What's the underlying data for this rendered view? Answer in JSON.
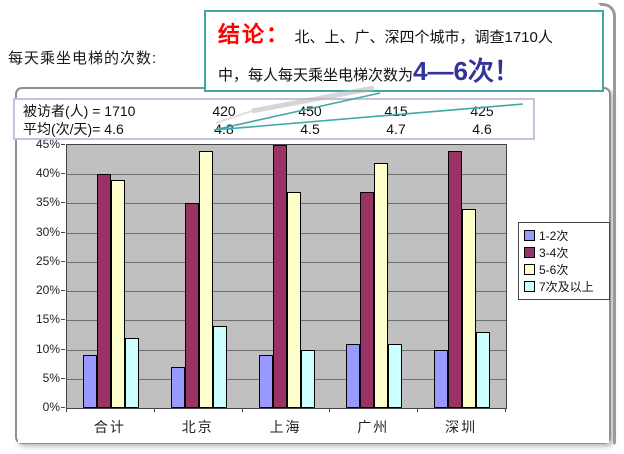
{
  "slide": {
    "title": "每天乘坐电梯的次数:",
    "callout": {
      "heading": "结论：",
      "line1": "北、上、广、深四个城市，调查1710人",
      "line2_prefix": "中，每人每天乘坐电梯次数为",
      "line2_highlight": "4—6次！",
      "border_color": "#3fa8a8",
      "heading_color": "#ff0000",
      "highlight_color": "#333399"
    },
    "stats_table": {
      "rows": [
        {
          "label": "被访者(人) = 1710",
          "values": [
            "420",
            "450",
            "415",
            "425"
          ]
        },
        {
          "label": "平均(次/天)=  4.6",
          "values": [
            "4.8",
            "4.5",
            "4.7",
            "4.6"
          ]
        }
      ]
    }
  },
  "chart_data": {
    "type": "bar",
    "title": "",
    "categories": [
      "合计",
      "北京",
      "上海",
      "广州",
      "深圳"
    ],
    "series": [
      {
        "name": "1-2次",
        "color": "#9999ff",
        "values": [
          9,
          7,
          9,
          11,
          10
        ]
      },
      {
        "name": "3-4次",
        "color": "#993366",
        "values": [
          40,
          35,
          45,
          37,
          44
        ]
      },
      {
        "name": "5-6次",
        "color": "#ffffcc",
        "values": [
          39,
          44,
          37,
          42,
          34
        ]
      },
      {
        "name": "7次及以上",
        "color": "#ccffff",
        "values": [
          12,
          14,
          10,
          11,
          13
        ]
      }
    ],
    "ylim": [
      0,
      45
    ],
    "ytick_step": 5,
    "ytick_format": "percent",
    "plot_bg": "#c0c0c0",
    "grid": true,
    "legend_position": "right"
  }
}
